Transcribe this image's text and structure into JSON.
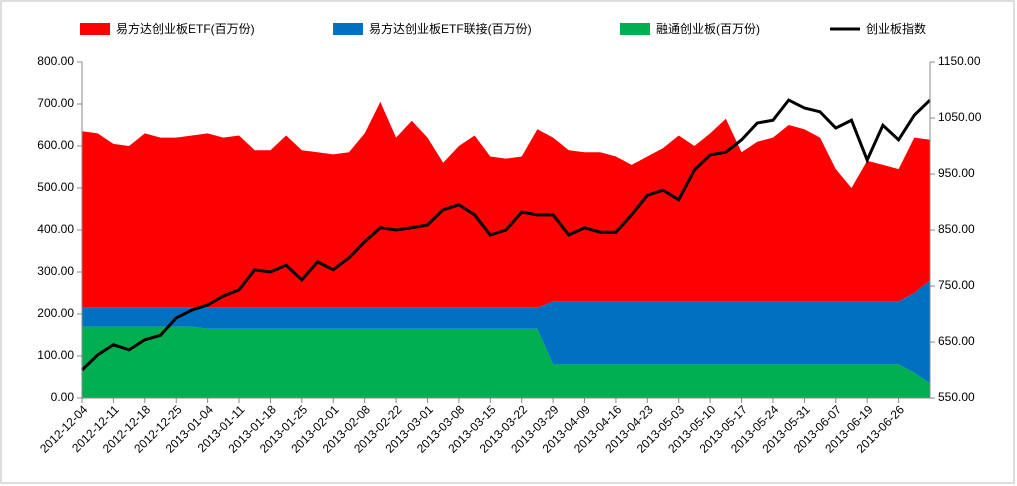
{
  "chart_data": {
    "type": "stacked_area_line",
    "categories": [
      "2012-12-04",
      null,
      "2012-12-11",
      null,
      "2012-12-18",
      null,
      "2012-12-25",
      null,
      "2013-01-04",
      null,
      "2013-01-11",
      null,
      "2013-01-18",
      null,
      "2013-01-25",
      null,
      "2013-02-01",
      null,
      "2013-02-08",
      null,
      "2013-02-22",
      null,
      "2013-03-01",
      null,
      "2013-03-08",
      null,
      "2013-03-15",
      null,
      "2013-03-22",
      null,
      "2013-03-29",
      null,
      "2013-04-09",
      null,
      "2013-04-16",
      null,
      "2013-04-23",
      null,
      "2013-05-03",
      null,
      "2013-05-10",
      null,
      "2013-05-17",
      null,
      "2013-05-24",
      null,
      "2013-05-31",
      null,
      "2013-06-07",
      null,
      "2013-06-19",
      null,
      "2013-06-26",
      null,
      null
    ],
    "series": [
      {
        "name": "融通创业板(百万份)",
        "color": "#00b050",
        "kind": "area",
        "values": [
          170,
          170,
          170,
          170,
          170,
          170,
          170,
          170,
          165,
          165,
          165,
          165,
          165,
          165,
          165,
          165,
          165,
          165,
          165,
          165,
          165,
          165,
          165,
          165,
          165,
          165,
          165,
          165,
          165,
          165,
          80,
          80,
          80,
          80,
          80,
          80,
          80,
          80,
          80,
          80,
          80,
          80,
          80,
          80,
          80,
          80,
          80,
          80,
          80,
          80,
          80,
          80,
          80,
          60,
          35
        ]
      },
      {
        "name": "易方达创业板ETF联接(百万份)",
        "color": "#0070c0",
        "kind": "area",
        "values": [
          45,
          45,
          45,
          45,
          45,
          45,
          45,
          45,
          50,
          50,
          50,
          50,
          50,
          50,
          50,
          50,
          50,
          50,
          50,
          50,
          50,
          50,
          50,
          50,
          50,
          50,
          50,
          50,
          50,
          50,
          150,
          150,
          150,
          150,
          150,
          150,
          150,
          150,
          150,
          150,
          150,
          150,
          150,
          150,
          150,
          150,
          150,
          150,
          150,
          150,
          150,
          150,
          150,
          190,
          245
        ]
      },
      {
        "name": "易方达创业板ETF(百万份)",
        "color": "#ff0000",
        "kind": "area",
        "values": [
          420,
          415,
          390,
          385,
          415,
          405,
          405,
          410,
          415,
          405,
          410,
          375,
          375,
          410,
          375,
          370,
          365,
          370,
          415,
          490,
          405,
          445,
          405,
          345,
          385,
          410,
          360,
          355,
          360,
          425,
          390,
          360,
          355,
          355,
          345,
          325,
          345,
          365,
          395,
          370,
          400,
          435,
          355,
          380,
          390,
          420,
          410,
          390,
          315,
          270,
          335,
          325,
          315,
          370,
          335
        ]
      },
      {
        "name": "创业板指数",
        "color": "#000000",
        "kind": "line",
        "axis": "y2",
        "values": [
          600,
          627,
          645,
          636,
          654,
          662,
          693,
          707,
          716,
          732,
          743,
          779,
          775,
          787,
          761,
          793,
          779,
          800,
          829,
          854,
          850,
          854,
          859,
          886,
          895,
          877,
          841,
          850,
          882,
          877,
          877,
          841,
          854,
          846,
          846,
          877,
          912,
          921,
          904,
          957,
          984,
          989,
          1011,
          1041,
          1046,
          1082,
          1068,
          1061,
          1032,
          1046,
          975,
          1037,
          1011,
          1055,
          1082
        ]
      }
    ],
    "ylim": [
      0,
      800
    ],
    "yticks": [
      {
        "value": 0,
        "label": "0.00"
      },
      {
        "value": 100,
        "label": "100.00"
      },
      {
        "value": 200,
        "label": "200.00"
      },
      {
        "value": 300,
        "label": "300.00"
      },
      {
        "value": 400,
        "label": "400.00"
      },
      {
        "value": 500,
        "label": "500.00"
      },
      {
        "value": 600,
        "label": "600.00"
      },
      {
        "value": 700,
        "label": "700.00"
      },
      {
        "value": 800,
        "label": "800.00"
      }
    ],
    "y2lim": [
      550,
      1150
    ],
    "y2ticks": [
      {
        "value": 550,
        "label": "550.00"
      },
      {
        "value": 650,
        "label": "650.00"
      },
      {
        "value": 750,
        "label": "750.00"
      },
      {
        "value": 850,
        "label": "850.00"
      },
      {
        "value": 950,
        "label": "950.00"
      },
      {
        "value": 1050,
        "label": "1050.00"
      },
      {
        "value": 1150,
        "label": "1150.00"
      }
    ],
    "legend": "top"
  }
}
